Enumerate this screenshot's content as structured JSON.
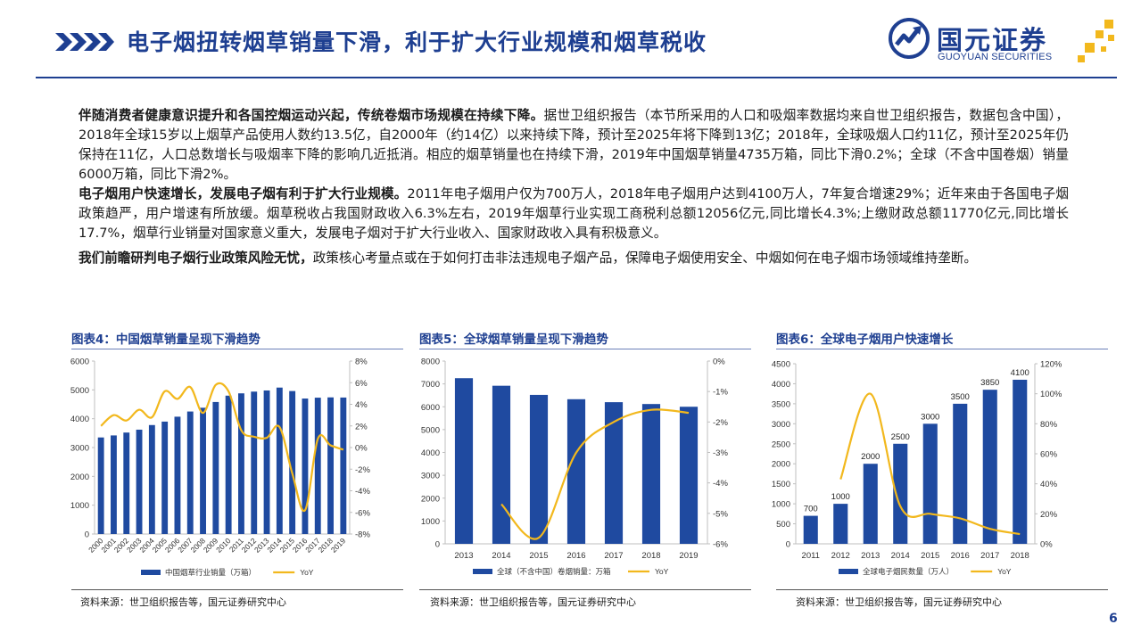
{
  "header": {
    "title": "电子烟扭转烟草销量下滑，利于扩大行业规模和烟草税收",
    "logo_cn": "国元证券",
    "logo_en": "GUOYUAN SECURITIES",
    "brand_color": "#1e3f91",
    "accent_color": "#f2b81d"
  },
  "body": {
    "p1_bold": "伴随消费者健康意识提升和各国控烟运动兴起，传统卷烟市场规模在持续下降。",
    "p1_text": "据世卫组织报告（本节所采用的人口和吸烟率数据均来自世卫组织报告，数据包含中国），2018年全球15岁以上烟草产品使用人数约13.5亿，自2000年（约14亿）以来持续下降，预计至2025年将下降到13亿；2018年，全球吸烟人口约11亿，预计至2025年仍保持在11亿，人口总数增长与吸烟率下降的影响几近抵消。相应的烟草销量也在持续下滑，2019年中国烟草销量4735万箱，同比下滑0.2%；全球（不含中国卷烟）销量6000万箱，同比下滑2%。",
    "p2_bold": "电子烟用户快速增长，发展电子烟有利于扩大行业规模。",
    "p2_text": "2011年电子烟用户仅为700万人，2018年电子烟用户达到4100万人，7年复合增速29%；近年来由于各国电子烟政策趋严，用户增速有所放缓。烟草税收占我国财政收入6.3%左右，2019年烟草行业实现工商税利总额12056亿元,同比增长4.3%;上缴财政总额11770亿元,同比增长17.7%，烟草行业销量对国家意义重大，发展电子烟对于扩大行业收入、国家财政收入具有积极意义。",
    "p3_bold": "我们前瞻研判电子烟行业政策风险无忧，",
    "p3_text": "政策核心考量点或在于如何打击非法违规电子烟产品，保障电子烟使用安全、中烟如何在电子烟市场领域维持垄断。"
  },
  "figures": [
    {
      "title": "图表4：中国烟草销量呈现下滑趋势",
      "source": "资料来源：世卫组织报告等，国元证券研究中心"
    },
    {
      "title": "图表5：全球烟草销量呈现下滑趋势",
      "source": "资料来源：世卫组织报告等，国元证券研究中心"
    },
    {
      "title": "图表6：全球电子烟用户快速增长",
      "source": "资料来源：世卫组织报告等，国元证券研究中心"
    }
  ],
  "page_number": "6",
  "chart_data": [
    {
      "type": "bar",
      "categories": [
        "2000",
        "2001",
        "2002",
        "2003",
        "2004",
        "2005",
        "2006",
        "2007",
        "2008",
        "2009",
        "2010",
        "2011",
        "2012",
        "2013",
        "2014",
        "2015",
        "2016",
        "2017",
        "2018",
        "2019"
      ],
      "series": [
        {
          "name": "中国烟草行业销量（万箱）",
          "type": "bar",
          "axis": "left",
          "color": "#1f4aa0",
          "values": [
            3350,
            3420,
            3520,
            3620,
            3780,
            3900,
            4070,
            4250,
            4380,
            4580,
            4800,
            4880,
            4940,
            4980,
            5080,
            4960,
            4700,
            4730,
            4740,
            4735
          ]
        },
        {
          "name": "YoY",
          "type": "line",
          "axis": "right",
          "color": "#f2b81d",
          "values": [
            2.0,
            3.0,
            2.5,
            3.5,
            2.8,
            5.2,
            4.5,
            5.6,
            3.2,
            5.8,
            5.2,
            1.6,
            1.0,
            0.9,
            1.9,
            -2.4,
            -5.8,
            0.8,
            0.2,
            -0.2
          ]
        }
      ],
      "ylim_left": [
        0,
        6000
      ],
      "yticks_left": [
        0,
        1000,
        2000,
        3000,
        4000,
        5000,
        6000
      ],
      "ylim_right": [
        -8,
        8
      ],
      "yticks_right": [
        "-8%",
        "-6%",
        "-4%",
        "-2%",
        "0%",
        "2%",
        "4%",
        "6%",
        "8%"
      ],
      "legend": [
        "中国烟草行业销量（万箱）",
        "YoY"
      ],
      "legend_position": "bottom"
    },
    {
      "type": "bar",
      "categories": [
        "2013",
        "2014",
        "2015",
        "2016",
        "2017",
        "2018",
        "2019"
      ],
      "series": [
        {
          "name": "全球（不含中国）卷烟销量：万箱",
          "type": "bar",
          "axis": "left",
          "color": "#1f4aa0",
          "values": [
            7250,
            6920,
            6520,
            6330,
            6200,
            6120,
            6000
          ]
        },
        {
          "name": "YoY",
          "type": "line",
          "axis": "right",
          "color": "#f2b81d",
          "values": [
            null,
            -4.7,
            -5.8,
            -3.0,
            -2.0,
            -1.6,
            -1.7
          ]
        }
      ],
      "ylim_left": [
        0,
        8000
      ],
      "yticks_left": [
        0,
        1000,
        2000,
        3000,
        4000,
        5000,
        6000,
        7000,
        8000
      ],
      "ylim_right": [
        -6,
        0
      ],
      "yticks_right": [
        "-6%",
        "-5%",
        "-4%",
        "-3%",
        "-2%",
        "-1%",
        "0%"
      ],
      "legend": [
        "全球（不含中国）卷烟销量：万箱",
        "YoY"
      ],
      "legend_position": "bottom"
    },
    {
      "type": "bar",
      "categories": [
        "2011",
        "2012",
        "2013",
        "2014",
        "2015",
        "2016",
        "2017",
        "2018"
      ],
      "series": [
        {
          "name": "全球电子烟民数量（万人）",
          "type": "bar",
          "axis": "left",
          "color": "#1f4aa0",
          "values": [
            700,
            1000,
            2000,
            2500,
            3000,
            3500,
            3850,
            4100
          ],
          "labels": [
            "700",
            "1000",
            "2000",
            "2500",
            "3000",
            "3500",
            "3850",
            "4100"
          ]
        },
        {
          "name": "YoY",
          "type": "line",
          "axis": "right",
          "color": "#f2b81d",
          "values": [
            null,
            43,
            100,
            25,
            20,
            17,
            10,
            6.5
          ]
        }
      ],
      "ylim_left": [
        0,
        4500
      ],
      "yticks_left": [
        0,
        500,
        1000,
        1500,
        2000,
        2500,
        3000,
        3500,
        4000,
        4500
      ],
      "ylim_right": [
        0,
        120
      ],
      "yticks_right": [
        "0%",
        "20%",
        "40%",
        "60%",
        "80%",
        "100%",
        "120%"
      ],
      "legend": [
        "全球电子烟民数量（万人）",
        "YoY"
      ],
      "legend_position": "bottom"
    }
  ]
}
